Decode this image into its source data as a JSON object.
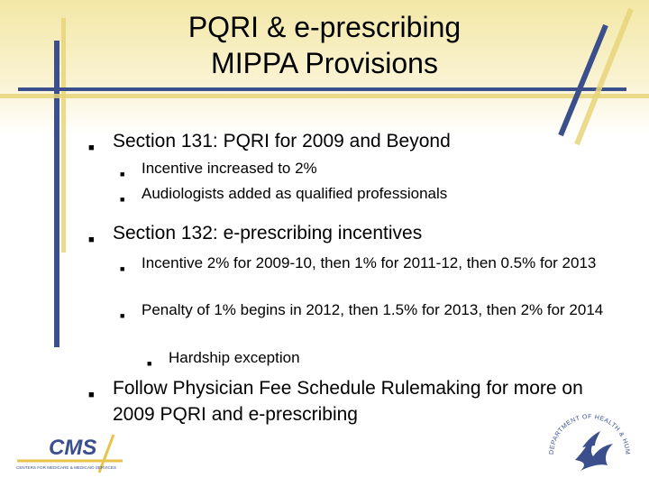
{
  "title": {
    "line1": "PQRI & e-prescribing",
    "line2": "MIPPA Provisions"
  },
  "bullets": [
    {
      "text": "Section 131:  PQRI for 2009 and Beyond",
      "sub": [
        "Incentive increased to 2%",
        "Audiologists added as qualified professionals"
      ]
    },
    {
      "text": "Section 132:  e-prescribing incentives",
      "sub": [
        "Incentive 2% for 2009-10, then 1% for 2011-12, then 0.5% for 2013",
        "Penalty of 1% begins in 2012, then 1.5% for 2013, then 2% for 2014"
      ],
      "subsub": [
        "Hardship exception"
      ]
    },
    {
      "text": "Follow Physician Fee Schedule Rulemaking for more on 2009 PQRI and e-prescribing"
    }
  ],
  "logos": {
    "cms_wordmark": "CMS",
    "cms_tagline": "CENTERS FOR MEDICARE & MEDICAID SERVICES",
    "hhs_seal_text": "DEPARTMENT OF HEALTH & HUMAN SERVICES · USA",
    "cms_icon": "cms-logo-icon",
    "hhs_icon": "hhs-seal-icon"
  },
  "colors": {
    "accent_blue": "#3a4f8c",
    "accent_gold": "#e8d57a",
    "background_top": "#f3e7a6"
  }
}
